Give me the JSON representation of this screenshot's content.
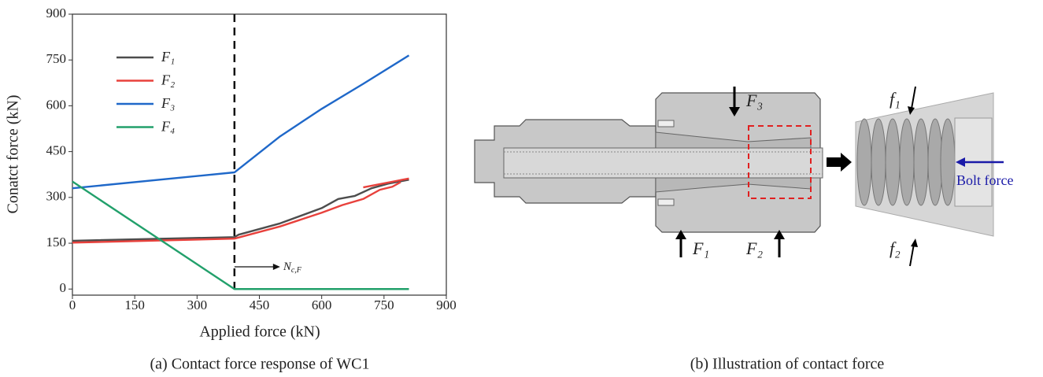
{
  "chart_data": {
    "type": "line",
    "x_label": "Applied force (kN)",
    "y_label": "Conatct force (kN)",
    "xlim": [
      0,
      900
    ],
    "ylim": [
      -20,
      900
    ],
    "xticks": [
      0,
      150,
      300,
      450,
      600,
      750,
      900
    ],
    "yticks": [
      0,
      150,
      300,
      450,
      600,
      750,
      900
    ],
    "legend": "upper left",
    "series": [
      {
        "name": "F₁",
        "color": "#4d4d4d",
        "x": [
          0,
          390,
          400,
          500,
          600,
          640,
          680,
          720,
          760,
          810
        ],
        "values": [
          158,
          170,
          178,
          215,
          265,
          295,
          305,
          330,
          345,
          358
        ]
      },
      {
        "name": "F₂",
        "color": "#e8413c",
        "x": [
          0,
          390,
          500,
          600,
          650,
          700,
          740,
          770,
          790,
          null,
          700,
          810
        ],
        "values": [
          152,
          165,
          205,
          250,
          275,
          295,
          325,
          335,
          350,
          null,
          333,
          362
        ]
      },
      {
        "name": "F₃",
        "color": "#1f68c9",
        "x": [
          0,
          390,
          500,
          600,
          700,
          810
        ],
        "values": [
          330,
          382,
          500,
          590,
          672,
          765
        ]
      },
      {
        "name": "F₄",
        "color": "#22a06b",
        "x": [
          0,
          390,
          810
        ],
        "values": [
          352,
          0,
          0
        ]
      }
    ],
    "threshold": {
      "x": 390,
      "label": "N",
      "label_subscript": "c,F"
    }
  },
  "captions": [
    "(a) Contact force response of WC1",
    "(b) Illustration of contact force"
  ],
  "diagram": {
    "F3": "F₃",
    "F1": "F₁",
    "F2": "F₂",
    "f1": "f₁",
    "f2": "f₂",
    "bolt_force": "Bolt force"
  }
}
